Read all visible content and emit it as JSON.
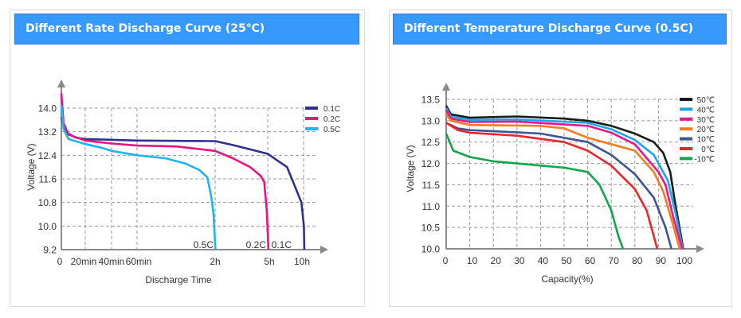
{
  "panels": [
    {
      "title": "Different Rate Discharge Curve (25℃)"
    },
    {
      "title": "Different Temperature Discharge Curve (0.5C)"
    }
  ],
  "chart_data": [
    {
      "type": "line",
      "title": "Different Rate Discharge Curve (25℃)",
      "xlabel": "Discharge Time",
      "ylabel": "Voltage (V)",
      "x_ticks": [
        {
          "hours": 0,
          "label": "0"
        },
        {
          "hours": 0.333,
          "label": "20min"
        },
        {
          "hours": 0.667,
          "label": "40min"
        },
        {
          "hours": 1,
          "label": "60min"
        },
        {
          "hours": 2,
          "label": "2h"
        },
        {
          "hours": 5,
          "label": "5h"
        },
        {
          "hours": 10,
          "label": "10h"
        }
      ],
      "y_ticks": [
        "9.2",
        "10.0",
        "10.8",
        "11.6",
        "12.4",
        "13.2",
        "14.0"
      ],
      "ylim": [
        9.2,
        14.0
      ],
      "grid": true,
      "legend": "top-right",
      "series": [
        {
          "name": "0.1C",
          "color": "#2e3192",
          "end_label": "0.1C",
          "points": [
            [
              0,
              13.7
            ],
            [
              0.05,
              13.2
            ],
            [
              0.2,
              13.0
            ],
            [
              0.333,
              12.95
            ],
            [
              1,
              12.9
            ],
            [
              2,
              12.88
            ],
            [
              3,
              12.75
            ],
            [
              4,
              12.6
            ],
            [
              5,
              12.45
            ],
            [
              6.5,
              12.2
            ],
            [
              7.7,
              12.0
            ],
            [
              8.7,
              11.4
            ],
            [
              9.7,
              10.8
            ],
            [
              10.05,
              10.0
            ],
            [
              10.1,
              9.2
            ]
          ]
        },
        {
          "name": "0.2C",
          "color": "#e6147f",
          "end_label": "0.2C",
          "points": [
            [
              0,
              14.5
            ],
            [
              0.03,
              13.5
            ],
            [
              0.1,
              13.1
            ],
            [
              0.333,
              12.9
            ],
            [
              0.667,
              12.8
            ],
            [
              1,
              12.73
            ],
            [
              1.5,
              12.7
            ],
            [
              2,
              12.55
            ],
            [
              3,
              12.3
            ],
            [
              4,
              12.0
            ],
            [
              4.6,
              11.7
            ],
            [
              4.8,
              11.5
            ],
            [
              4.95,
              10.5
            ],
            [
              5.1,
              9.2
            ]
          ]
        },
        {
          "name": "0.5C",
          "color": "#1eb4ec",
          "end_label": "0.5C",
          "points": [
            [
              0,
              14.1
            ],
            [
              0.03,
              13.3
            ],
            [
              0.1,
              12.95
            ],
            [
              0.333,
              12.78
            ],
            [
              0.55,
              12.65
            ],
            [
              0.667,
              12.55
            ],
            [
              1,
              12.4
            ],
            [
              1.36,
              12.3
            ],
            [
              1.62,
              12.12
            ],
            [
              1.8,
              11.9
            ],
            [
              1.9,
              11.65
            ],
            [
              1.95,
              11.0
            ],
            [
              1.98,
              10.4
            ],
            [
              2.02,
              9.2
            ]
          ]
        }
      ]
    },
    {
      "type": "line",
      "title": "Different Temperature Discharge Curve (0.5C)",
      "xlabel": "Capacity(%)",
      "ylabel": "Voltage (V)",
      "x_ticks": [
        "0",
        "10",
        "20",
        "30",
        "40",
        "50",
        "60",
        "70",
        "80",
        "90",
        "100"
      ],
      "y_ticks": [
        "10.0",
        "10.5",
        "11.0",
        "11.5",
        "12.0",
        "12.5",
        "13.0",
        "13.5"
      ],
      "xlim": [
        0,
        100
      ],
      "ylim": [
        10.0,
        13.5
      ],
      "grid": true,
      "legend": "top-right",
      "series": [
        {
          "name": "50℃",
          "color": "#1a1a1a",
          "points": [
            [
              0,
              13.35
            ],
            [
              2,
              13.15
            ],
            [
              10,
              13.07
            ],
            [
              30,
              13.1
            ],
            [
              50,
              13.05
            ],
            [
              60,
              13.0
            ],
            [
              70,
              12.88
            ],
            [
              80,
              12.7
            ],
            [
              88,
              12.5
            ],
            [
              92,
              12.25
            ],
            [
              95,
              11.8
            ],
            [
              97,
              11.1
            ],
            [
              100.5,
              10.0
            ]
          ]
        },
        {
          "name": "40℃",
          "color": "#18a8e8",
          "points": [
            [
              0,
              13.3
            ],
            [
              2,
              13.1
            ],
            [
              10,
              13.02
            ],
            [
              30,
              13.03
            ],
            [
              60,
              12.95
            ],
            [
              70,
              12.8
            ],
            [
              80,
              12.55
            ],
            [
              88,
              12.2
            ],
            [
              94,
              11.6
            ],
            [
              97,
              10.9
            ],
            [
              100.3,
              10.0
            ]
          ]
        },
        {
          "name": "30℃",
          "color": "#e8178a",
          "points": [
            [
              0,
              13.25
            ],
            [
              2,
              13.05
            ],
            [
              10,
              12.97
            ],
            [
              30,
              12.98
            ],
            [
              60,
              12.88
            ],
            [
              70,
              12.72
            ],
            [
              80,
              12.45
            ],
            [
              90,
              11.8
            ],
            [
              93,
              11.5
            ],
            [
              96,
              10.8
            ],
            [
              100,
              10.0
            ]
          ]
        },
        {
          "name": "20℃",
          "color": "#f47b20",
          "points": [
            [
              0,
              13.15
            ],
            [
              2,
              13.0
            ],
            [
              10,
              12.9
            ],
            [
              40,
              12.88
            ],
            [
              50,
              12.82
            ],
            [
              60,
              12.6
            ],
            [
              70,
              12.45
            ],
            [
              80,
              12.3
            ],
            [
              88,
              11.8
            ],
            [
              92,
              11.35
            ],
            [
              96,
              10.6
            ],
            [
              99,
              10.0
            ]
          ]
        },
        {
          "name": "10℃",
          "color": "#3f5591",
          "points": [
            [
              0,
              12.95
            ],
            [
              5,
              12.82
            ],
            [
              10,
              12.78
            ],
            [
              30,
              12.73
            ],
            [
              40,
              12.7
            ],
            [
              60,
              12.5
            ],
            [
              70,
              12.2
            ],
            [
              80,
              11.75
            ],
            [
              88,
              11.2
            ],
            [
              93,
              10.5
            ],
            [
              95.5,
              10.0
            ]
          ]
        },
        {
          "name": "0℃",
          "color": "#e8262b",
          "points": [
            [
              0,
              12.95
            ],
            [
              5,
              12.78
            ],
            [
              10,
              12.72
            ],
            [
              30,
              12.65
            ],
            [
              50,
              12.5
            ],
            [
              60,
              12.3
            ],
            [
              70,
              11.95
            ],
            [
              80,
              11.4
            ],
            [
              85,
              10.9
            ],
            [
              88,
              10.3
            ],
            [
              89.5,
              10.0
            ]
          ]
        },
        {
          "name": "-10℃",
          "color": "#13a54b",
          "points": [
            [
              0,
              12.7
            ],
            [
              3,
              12.3
            ],
            [
              10,
              12.15
            ],
            [
              20,
              12.05
            ],
            [
              30,
              12.0
            ],
            [
              50,
              11.9
            ],
            [
              60,
              11.8
            ],
            [
              65,
              11.5
            ],
            [
              70,
              10.9
            ],
            [
              73,
              10.3
            ],
            [
              75,
              10.0
            ]
          ]
        }
      ]
    }
  ]
}
